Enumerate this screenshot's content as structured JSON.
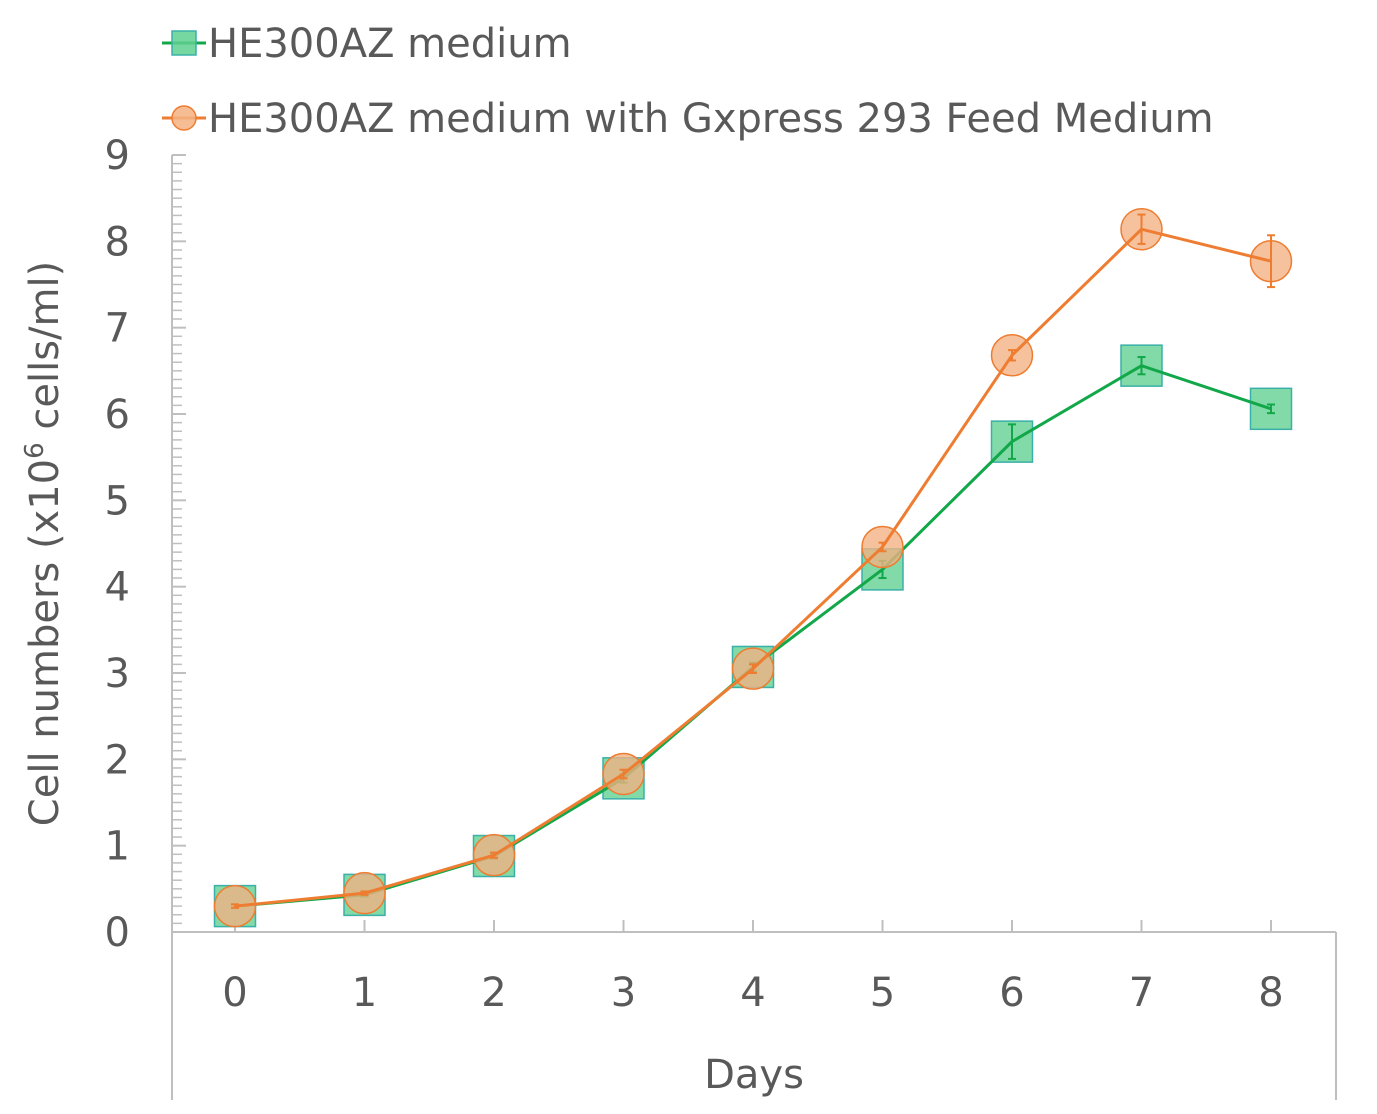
{
  "chart_data": {
    "type": "line",
    "title": "",
    "xlabel": "Days",
    "ylabel": {
      "prefix": "Cell numbers (x10",
      "superscript": "6",
      "suffix": " cells/ml)"
    },
    "x": [
      0,
      1,
      2,
      3,
      4,
      5,
      6,
      7,
      8
    ],
    "x_tick_labels": [
      "0",
      "1",
      "2",
      "3",
      "4",
      "5",
      "6",
      "7",
      "8"
    ],
    "y_tick_labels": [
      "0",
      "1",
      "2",
      "3",
      "4",
      "5",
      "6",
      "7",
      "8",
      "9"
    ],
    "ylim": [
      0,
      9
    ],
    "grid": false,
    "legend_position": "top-left",
    "series": [
      {
        "name": "HE300AZ medium",
        "marker": "square",
        "line_color": "#12a84a",
        "marker_fill": "#5fd08f",
        "marker_edge": "#3ab0a8",
        "values": [
          0.3,
          0.43,
          0.88,
          1.78,
          3.07,
          4.2,
          5.68,
          6.56,
          6.06
        ],
        "errors": [
          0.02,
          0.02,
          0.03,
          0.05,
          0.05,
          0.1,
          0.2,
          0.1,
          0.05
        ]
      },
      {
        "name": "HE300AZ medium with Gxpress 293 Feed Medium",
        "marker": "circle",
        "line_color": "#ee7d31",
        "marker_fill": "#f4b183",
        "marker_edge": "#ee7d31",
        "values": [
          0.3,
          0.45,
          0.89,
          1.83,
          3.05,
          4.46,
          6.68,
          8.14,
          7.77
        ],
        "errors": [
          0.02,
          0.02,
          0.03,
          0.05,
          0.05,
          0.05,
          0.06,
          0.17,
          0.3
        ]
      }
    ]
  }
}
